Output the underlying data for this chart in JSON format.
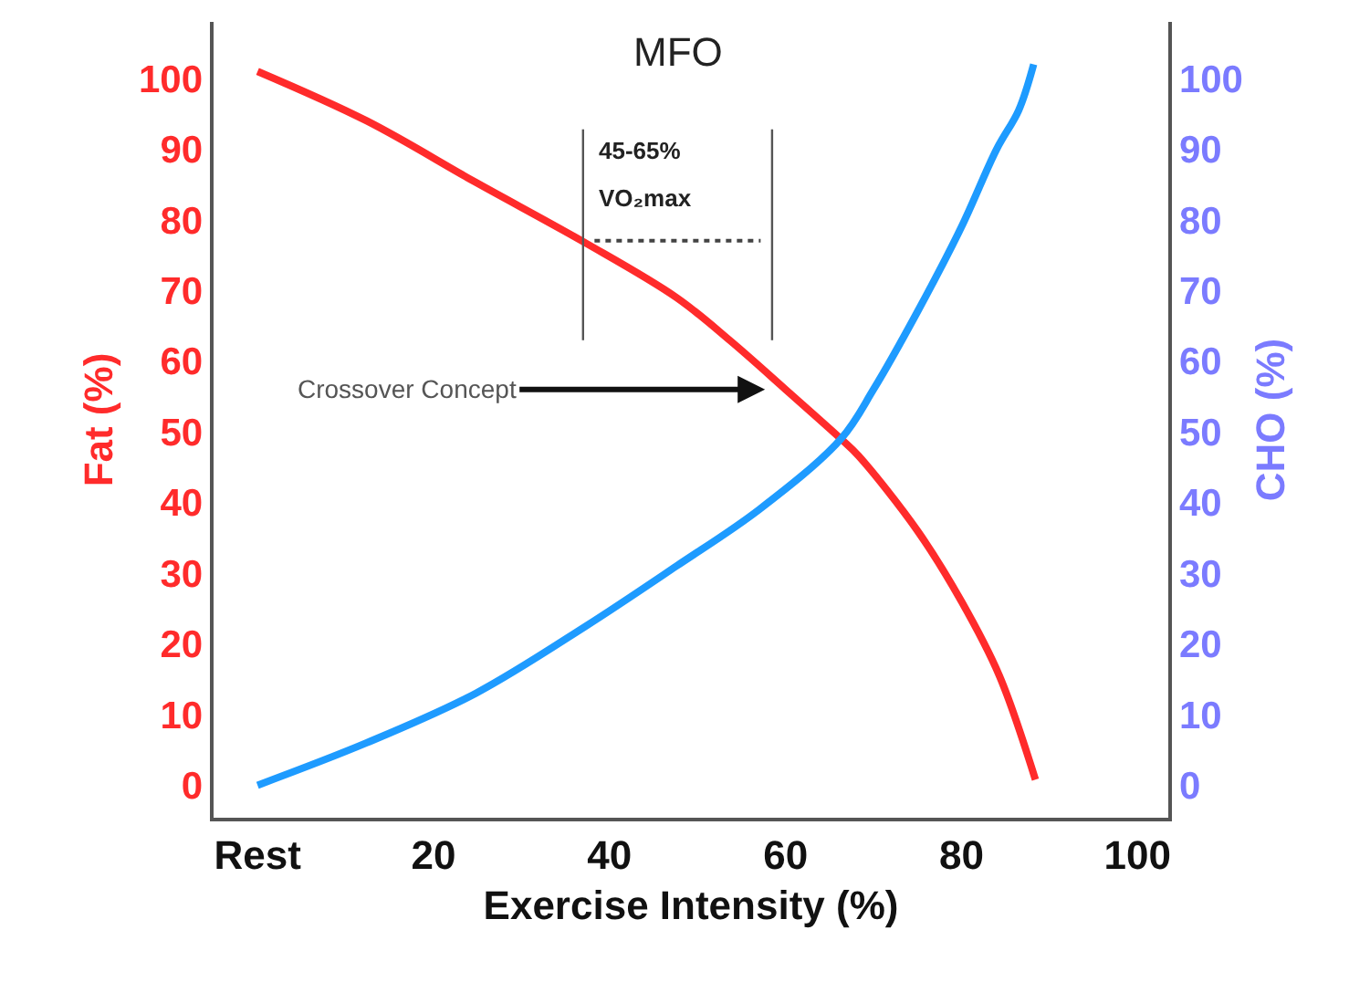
{
  "chart_data": {
    "type": "line",
    "xlabel": "Exercise Intensity (%)",
    "ylabel": "Fat (%)",
    "y2label": "CHO (%)",
    "series": [
      {
        "color": "#ff2b2b",
        "axis": "y",
        "x": [
          0,
          12.4,
          24.8,
          37.3,
          47.6,
          53.8,
          60,
          66.3,
          68.3,
          75,
          80,
          84.3,
          88.4
        ],
        "values": [
          101,
          94,
          85.3,
          76.7,
          69,
          62.8,
          56,
          49,
          46.6,
          36,
          26,
          15.5,
          0.8
        ]
      },
      {
        "color": "#1e9bff",
        "axis": "y2",
        "x": [
          0,
          12.4,
          24.8,
          37.3,
          47.6,
          57,
          66.3,
          70,
          75,
          80,
          84,
          86.5,
          88.2
        ],
        "values": [
          0,
          6,
          13,
          22.5,
          31,
          39,
          49,
          56,
          67,
          79,
          90,
          95.5,
          102
        ]
      }
    ],
    "xlim": [
      -5,
      103.5
    ],
    "xticks": [
      {
        "value": 0,
        "label": "Rest"
      },
      20,
      40,
      60,
      80,
      100
    ],
    "ylim": [
      -4.6,
      108
    ],
    "yticks": [
      0,
      10,
      20,
      30,
      40,
      50,
      60,
      70,
      80,
      90,
      100
    ],
    "y2lim": [
      -4.6,
      108
    ],
    "y2ticks": [
      0,
      10,
      20,
      30,
      40,
      50,
      60,
      70,
      80,
      90,
      100
    ],
    "annotations": [
      {
        "text": "Crossover Concept",
        "x": 58.5,
        "y": 56
      },
      "MFO",
      "45-65%",
      "VO₂max"
    ],
    "marker": "none",
    "line_style": "solid"
  }
}
